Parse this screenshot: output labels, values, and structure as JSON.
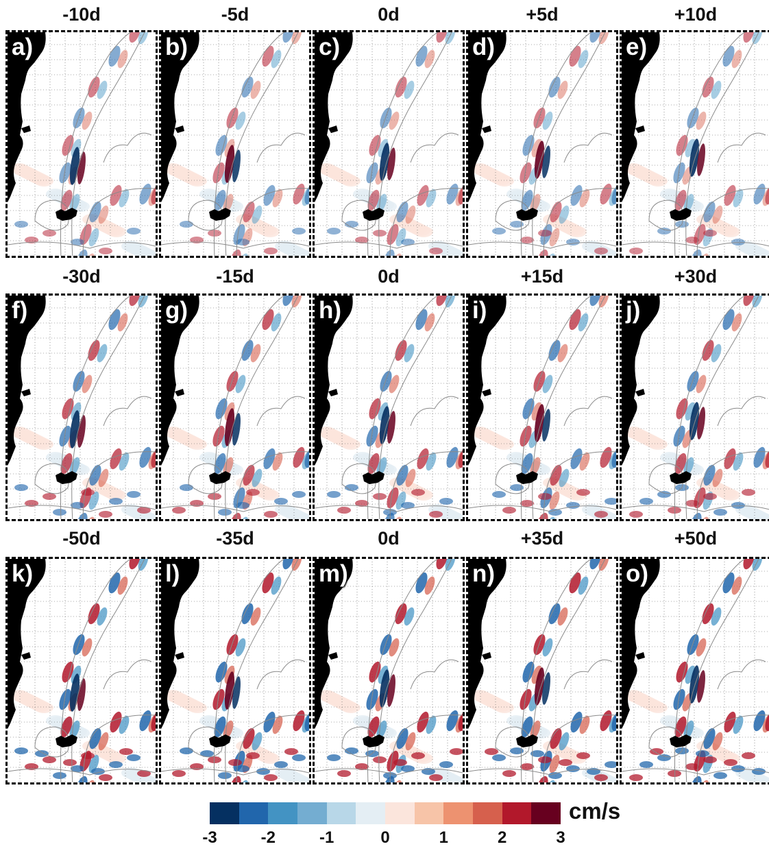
{
  "panels": [
    {
      "label": "a)",
      "title": "-10d",
      "row": 0,
      "col": 0
    },
    {
      "label": "b)",
      "title": "-5d",
      "row": 0,
      "col": 1
    },
    {
      "label": "c)",
      "title": "0d",
      "row": 0,
      "col": 2
    },
    {
      "label": "d)",
      "title": "+5d",
      "row": 0,
      "col": 3
    },
    {
      "label": "e)",
      "title": "+10d",
      "row": 0,
      "col": 4
    },
    {
      "label": "f)",
      "title": "-30d",
      "row": 1,
      "col": 0
    },
    {
      "label": "g)",
      "title": "-15d",
      "row": 1,
      "col": 1
    },
    {
      "label": "h)",
      "title": "0d",
      "row": 1,
      "col": 2
    },
    {
      "label": "i)",
      "title": "+15d",
      "row": 1,
      "col": 3
    },
    {
      "label": "j)",
      "title": "+30d",
      "row": 1,
      "col": 4
    },
    {
      "label": "k)",
      "title": "-50d",
      "row": 2,
      "col": 0
    },
    {
      "label": "l)",
      "title": "-35d",
      "row": 2,
      "col": 1
    },
    {
      "label": "m)",
      "title": "0d",
      "row": 2,
      "col": 2
    },
    {
      "label": "n)",
      "title": "+35d",
      "row": 2,
      "col": 3
    },
    {
      "label": "o)",
      "title": "+50d",
      "row": 2,
      "col": 4
    }
  ],
  "colorbar": {
    "unit": "cm/s",
    "ticks": [
      "-3",
      "-2",
      "-1",
      "0",
      "1",
      "2",
      "3"
    ],
    "colors": [
      "#053061",
      "#2166ac",
      "#4393c3",
      "#74add1",
      "#b8d7e8",
      "#e4eef4",
      "#fbe5dc",
      "#f7c4a8",
      "#ed9270",
      "#d6604d",
      "#b2182b",
      "#67001f"
    ]
  },
  "map_colors": {
    "land": "#000000",
    "contour": "#8a8a8a",
    "grid": "#555555"
  }
}
